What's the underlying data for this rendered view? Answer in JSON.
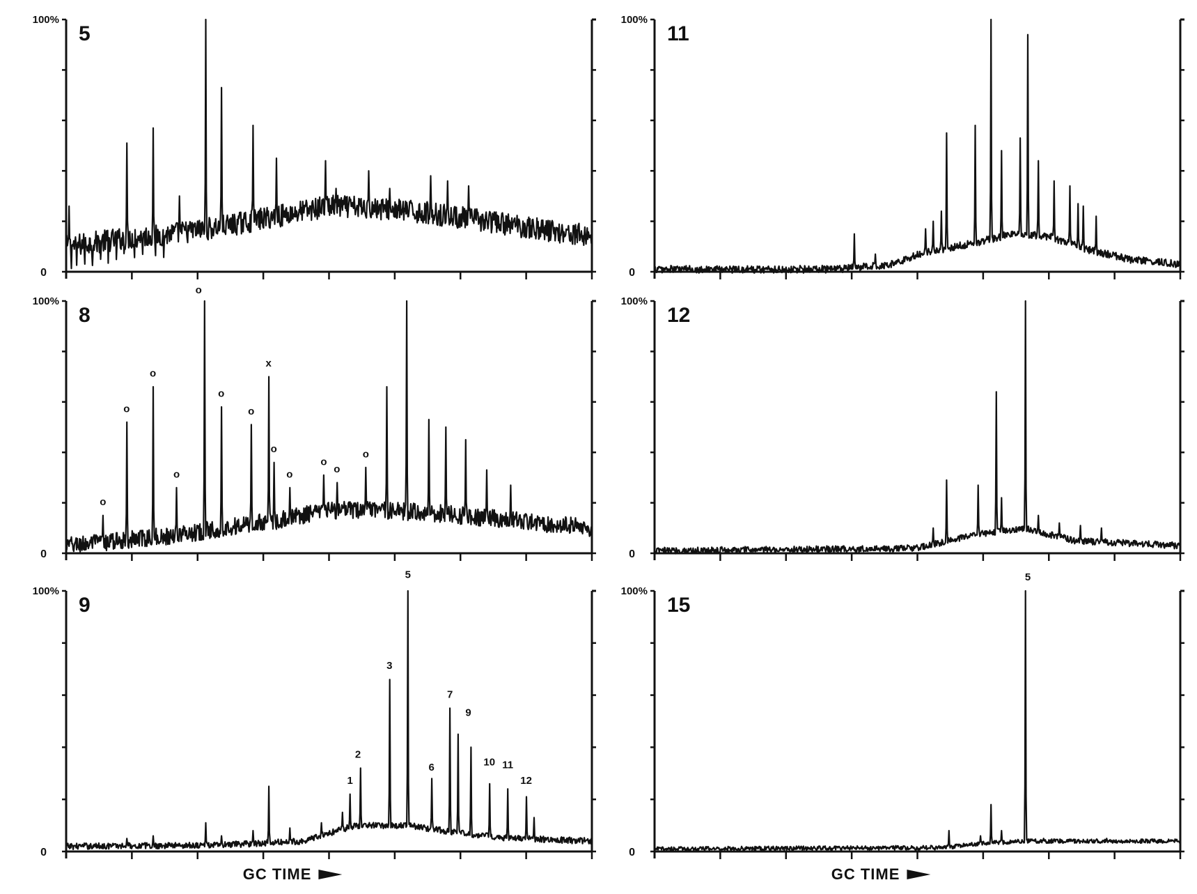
{
  "xlabel": "GC TIME",
  "chart_data": [
    {
      "type": "line",
      "panel": "5",
      "ylabel_top": "100%",
      "ylabel_bottom": "0",
      "ylim": [
        0,
        100
      ],
      "xlim": [
        0,
        100
      ],
      "baseline": [
        [
          0,
          10
        ],
        [
          10,
          13
        ],
        [
          20,
          15
        ],
        [
          30,
          18
        ],
        [
          40,
          22
        ],
        [
          50,
          26
        ],
        [
          60,
          25
        ],
        [
          70,
          23
        ],
        [
          80,
          20
        ],
        [
          90,
          17
        ],
        [
          100,
          14
        ]
      ],
      "noise": 4.5,
      "peaks": [
        [
          0.6,
          26
        ],
        [
          11.5,
          51
        ],
        [
          16.6,
          57
        ],
        [
          21.5,
          30
        ],
        [
          26.6,
          100
        ],
        [
          29.6,
          73
        ],
        [
          35.5,
          58
        ],
        [
          40,
          45
        ],
        [
          49.3,
          44
        ],
        [
          51.3,
          33
        ],
        [
          57.5,
          40
        ],
        [
          61.5,
          33
        ],
        [
          69.3,
          38
        ],
        [
          72.5,
          36
        ],
        [
          76.5,
          34
        ]
      ],
      "dips": [
        [
          1,
          9
        ],
        [
          2,
          8
        ],
        [
          3.5,
          8
        ],
        [
          5,
          9
        ],
        [
          6.5,
          7
        ],
        [
          8,
          9
        ],
        [
          9.5,
          8
        ],
        [
          11,
          6
        ],
        [
          13,
          8
        ],
        [
          14.5,
          7
        ],
        [
          17,
          8
        ],
        [
          18.5,
          9
        ]
      ],
      "markers": []
    },
    {
      "type": "line",
      "panel": "8",
      "ylabel_top": "100%",
      "ylabel_bottom": "0",
      "ylim": [
        0,
        100
      ],
      "xlim": [
        0,
        100
      ],
      "baseline": [
        [
          0,
          3
        ],
        [
          10,
          5
        ],
        [
          20,
          7
        ],
        [
          30,
          10
        ],
        [
          40,
          13
        ],
        [
          50,
          17
        ],
        [
          60,
          17
        ],
        [
          70,
          16
        ],
        [
          80,
          14
        ],
        [
          90,
          12
        ],
        [
          100,
          10
        ]
      ],
      "noise": 3.5,
      "peaks": [
        [
          7,
          15
        ],
        [
          11.5,
          52
        ],
        [
          16.5,
          66
        ],
        [
          21,
          26
        ],
        [
          26.3,
          100
        ],
        [
          29.5,
          58
        ],
        [
          35.2,
          51
        ],
        [
          38.5,
          70
        ],
        [
          39.5,
          36
        ],
        [
          42.5,
          26
        ],
        [
          49,
          31
        ],
        [
          51.5,
          28
        ],
        [
          57,
          34
        ],
        [
          61,
          66
        ],
        [
          64.8,
          100
        ],
        [
          69,
          53
        ],
        [
          72.2,
          50
        ],
        [
          76,
          45
        ],
        [
          80,
          33
        ],
        [
          84.5,
          27
        ]
      ],
      "dips": [
        [
          2,
          2
        ],
        [
          4,
          1
        ],
        [
          8,
          2
        ],
        [
          10,
          1
        ],
        [
          13,
          2
        ],
        [
          15,
          1
        ],
        [
          18,
          2
        ],
        [
          20,
          1
        ],
        [
          24,
          2
        ],
        [
          28,
          2
        ]
      ],
      "markers": [
        {
          "label": "o",
          "x": 7,
          "y": 19
        },
        {
          "label": "o",
          "x": 11.5,
          "y": 56
        },
        {
          "label": "o",
          "x": 16.5,
          "y": 70
        },
        {
          "label": "o",
          "x": 21,
          "y": 30
        },
        {
          "label": "o",
          "x": 25.2,
          "y": 103
        },
        {
          "label": "o",
          "x": 29.5,
          "y": 62
        },
        {
          "label": "o",
          "x": 35.2,
          "y": 55
        },
        {
          "label": "x",
          "x": 38.5,
          "y": 74
        },
        {
          "label": "o",
          "x": 39.5,
          "y": 40
        },
        {
          "label": "o",
          "x": 42.5,
          "y": 30
        },
        {
          "label": "o",
          "x": 49,
          "y": 35
        },
        {
          "label": "o",
          "x": 51.5,
          "y": 32
        },
        {
          "label": "o",
          "x": 57,
          "y": 38
        }
      ]
    },
    {
      "type": "line",
      "panel": "9",
      "ylabel_top": "100%",
      "ylabel_bottom": "0",
      "ylim": [
        0,
        100
      ],
      "xlim": [
        0,
        100
      ],
      "baseline": [
        [
          0,
          2
        ],
        [
          30,
          2.5
        ],
        [
          45,
          4
        ],
        [
          55,
          10
        ],
        [
          65,
          10
        ],
        [
          75,
          7
        ],
        [
          85,
          5
        ],
        [
          100,
          4
        ]
      ],
      "noise": 1.2,
      "peaks": [
        [
          11.5,
          5
        ],
        [
          16.5,
          6
        ],
        [
          26.5,
          11
        ],
        [
          29.5,
          6
        ],
        [
          35.5,
          8
        ],
        [
          38.5,
          25
        ],
        [
          42.5,
          9
        ],
        [
          48.5,
          11
        ],
        [
          52.5,
          15
        ],
        [
          54,
          22
        ],
        [
          56,
          32
        ],
        [
          61.5,
          66
        ],
        [
          65,
          100
        ],
        [
          69.5,
          28
        ],
        [
          73,
          55
        ],
        [
          74.5,
          45
        ],
        [
          77,
          40
        ],
        [
          80.5,
          26
        ],
        [
          84,
          24
        ],
        [
          87.5,
          21
        ],
        [
          89,
          13
        ]
      ],
      "dips": [],
      "markers": [
        {
          "label": "1",
          "x": 54,
          "y": 26
        },
        {
          "label": "2",
          "x": 55.5,
          "y": 36
        },
        {
          "label": "3",
          "x": 61.5,
          "y": 70
        },
        {
          "label": "5",
          "x": 65,
          "y": 105
        },
        {
          "label": "6",
          "x": 69.5,
          "y": 31
        },
        {
          "label": "7",
          "x": 73,
          "y": 59
        },
        {
          "label": "9",
          "x": 76.5,
          "y": 52
        },
        {
          "label": "10",
          "x": 80.5,
          "y": 33
        },
        {
          "label": "11",
          "x": 84,
          "y": 32
        },
        {
          "label": "12",
          "x": 87.5,
          "y": 26
        }
      ]
    },
    {
      "type": "line",
      "panel": "11",
      "ylabel_top": "100%",
      "ylabel_bottom": "0",
      "ylim": [
        0,
        100
      ],
      "xlim": [
        0,
        100
      ],
      "baseline": [
        [
          0,
          1
        ],
        [
          35,
          1
        ],
        [
          45,
          3
        ],
        [
          52,
          8
        ],
        [
          60,
          11
        ],
        [
          68,
          15
        ],
        [
          75,
          14
        ],
        [
          82,
          9
        ],
        [
          90,
          5
        ],
        [
          100,
          3
        ]
      ],
      "noise": 1.5,
      "peaks": [
        [
          38,
          15
        ],
        [
          42,
          7
        ],
        [
          51.5,
          17
        ],
        [
          53,
          20
        ],
        [
          54.5,
          24
        ],
        [
          55.5,
          55
        ],
        [
          61,
          58
        ],
        [
          64,
          100
        ],
        [
          66,
          48
        ],
        [
          69.5,
          53
        ],
        [
          71,
          94
        ],
        [
          73,
          44
        ],
        [
          76,
          36
        ],
        [
          79,
          34
        ],
        [
          80.5,
          27
        ],
        [
          81.5,
          26
        ],
        [
          84,
          22
        ]
      ],
      "dips": [],
      "markers": []
    },
    {
      "type": "line",
      "panel": "12",
      "ylabel_top": "100%",
      "ylabel_bottom": "0",
      "ylim": [
        0,
        100
      ],
      "xlim": [
        0,
        100
      ],
      "baseline": [
        [
          0,
          1
        ],
        [
          50,
          2
        ],
        [
          60,
          7
        ],
        [
          70,
          10
        ],
        [
          80,
          5
        ],
        [
          90,
          4
        ],
        [
          100,
          3
        ]
      ],
      "noise": 1.3,
      "peaks": [
        [
          53,
          10
        ],
        [
          55.5,
          29
        ],
        [
          61.5,
          27
        ],
        [
          65,
          64
        ],
        [
          66,
          22
        ],
        [
          70.5,
          100
        ],
        [
          73,
          15
        ],
        [
          77,
          12
        ],
        [
          81,
          11
        ],
        [
          85,
          10
        ]
      ],
      "dips": [],
      "markers": []
    },
    {
      "type": "line",
      "panel": "15",
      "ylabel_top": "100%",
      "ylabel_bottom": "0",
      "ylim": [
        0,
        100
      ],
      "xlim": [
        0,
        100
      ],
      "baseline": [
        [
          0,
          1
        ],
        [
          55,
          1.5
        ],
        [
          62,
          3
        ],
        [
          70,
          4
        ],
        [
          80,
          4
        ],
        [
          90,
          4
        ],
        [
          100,
          4
        ]
      ],
      "noise": 0.8,
      "peaks": [
        [
          56,
          8
        ],
        [
          62,
          6
        ],
        [
          64,
          18
        ],
        [
          66,
          8
        ],
        [
          70.5,
          100
        ],
        [
          74,
          5
        ],
        [
          86,
          5
        ]
      ],
      "dips": [],
      "markers": [
        {
          "label": "5",
          "x": 71,
          "y": 104
        }
      ]
    }
  ]
}
